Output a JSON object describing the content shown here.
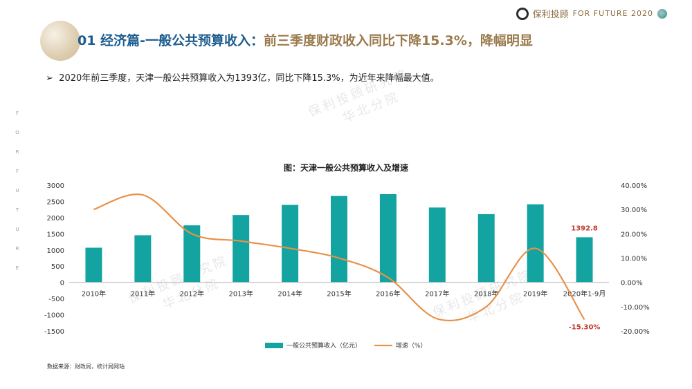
{
  "header": {
    "brand_name": "保利投顾",
    "slogan": "FOR FUTURE 2020",
    "title_part1": "01 经济篇-一般公共预算收入：",
    "title_part2": "前三季度财政收入同比下降15.3%，降幅明显"
  },
  "bullet": "2020年前三季度，天津一般公共预算收入为1393亿，同比下降15.3%，为近年来降幅最大值。",
  "side_letters": [
    "F",
    "O",
    "R",
    "F",
    "U",
    "T",
    "U",
    "R",
    "E"
  ],
  "source": "数据来源：财政局，统计局网站",
  "watermark": {
    "line1": "保利投顾研究院",
    "line2": "华北分院"
  },
  "colors": {
    "bar": "#13a3a0",
    "line": "#e8924a",
    "highlight": "#c0392b",
    "title_blue": "#1d5d8f",
    "title_gold": "#9a7a4d"
  },
  "chart_data": {
    "type": "bar",
    "title": "图：天津一般公共预算收入及增速",
    "categories": [
      "2010年",
      "2011年",
      "2012年",
      "2013年",
      "2014年",
      "2015年",
      "2016年",
      "2017年",
      "2018年",
      "2019年",
      "2020年1-9月"
    ],
    "series": [
      {
        "name": "一般公共预算收入（亿元）",
        "type": "bar",
        "axis": "left",
        "values": [
          1070,
          1455,
          1760,
          2079,
          2390,
          2667,
          2723,
          2310,
          2106,
          2410,
          1392.8
        ]
      },
      {
        "name": "增速（%）",
        "type": "line",
        "axis": "right",
        "values": [
          30.0,
          36.0,
          20.0,
          17.0,
          14.0,
          10.0,
          2.0,
          -15.0,
          -10.0,
          14.0,
          -15.3
        ]
      }
    ],
    "data_labels": [
      {
        "series": 0,
        "index": 10,
        "text": "1392.8"
      },
      {
        "series": 1,
        "index": 10,
        "text": "-15.30%"
      }
    ],
    "y_left": {
      "min": -1500,
      "max": 3000,
      "ticks": [
        "3000",
        "2500",
        "2000",
        "1500",
        "1000",
        "500",
        "0",
        "-500",
        "-1000",
        "-1500"
      ]
    },
    "y_right": {
      "min": -20,
      "max": 40,
      "ticks": [
        "40.00%",
        "30.00%",
        "20.00%",
        "10.00%",
        "0.00%",
        "-10.00%",
        "-20.00%"
      ]
    },
    "grid": false,
    "legend": "bottom"
  }
}
